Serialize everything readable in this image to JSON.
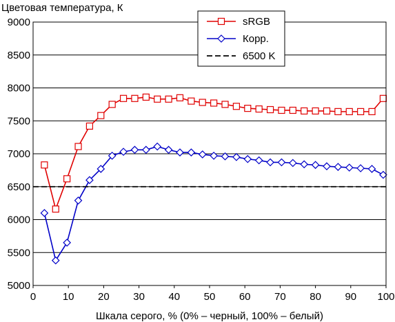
{
  "chart_data": {
    "type": "line",
    "title": "",
    "ylabel": "Цветовая температура, К",
    "xlabel": "Шкала серого, % (0% – черный, 100% – белый)",
    "xlim": [
      0,
      100
    ],
    "ylim": [
      5000,
      9000
    ],
    "xticks": [
      "0",
      "10",
      "20",
      "30",
      "40",
      "50",
      "60",
      "70",
      "80",
      "90",
      "100"
    ],
    "yticks": [
      "5000",
      "5500",
      "6000",
      "6500",
      "7000",
      "7500",
      "8000",
      "8500",
      "9000"
    ],
    "grid": "horizontal",
    "legend_position": "top-center",
    "series": [
      {
        "name": "sRGB",
        "color": "#e00000",
        "marker": "square",
        "x": [
          3.2,
          6.4,
          9.6,
          12.8,
          16,
          19.2,
          22.4,
          25.6,
          28.8,
          32,
          35.2,
          38.4,
          41.6,
          44.8,
          48,
          51.2,
          54.4,
          57.6,
          60.8,
          64,
          67.2,
          70.4,
          73.6,
          76.8,
          80,
          83.2,
          86.4,
          89.6,
          92.8,
          96,
          99.2
        ],
        "values": [
          6830,
          6160,
          6620,
          7110,
          7420,
          7580,
          7750,
          7840,
          7840,
          7860,
          7830,
          7830,
          7850,
          7800,
          7780,
          7770,
          7750,
          7720,
          7690,
          7680,
          7670,
          7660,
          7660,
          7650,
          7650,
          7650,
          7640,
          7640,
          7640,
          7640,
          7840
        ]
      },
      {
        "name": "Корр.",
        "color": "#0000c8",
        "marker": "diamond",
        "x": [
          3.2,
          6.4,
          9.6,
          12.8,
          16,
          19.2,
          22.4,
          25.6,
          28.8,
          32,
          35.2,
          38.4,
          41.6,
          44.8,
          48,
          51.2,
          54.4,
          57.6,
          60.8,
          64,
          67.2,
          70.4,
          73.6,
          76.8,
          80,
          83.2,
          86.4,
          89.6,
          92.8,
          96,
          99.2
        ],
        "values": [
          6100,
          5380,
          5650,
          6290,
          6600,
          6770,
          6970,
          7030,
          7060,
          7060,
          7110,
          7060,
          7020,
          7020,
          6990,
          6970,
          6960,
          6950,
          6920,
          6900,
          6870,
          6870,
          6860,
          6840,
          6830,
          6810,
          6800,
          6790,
          6780,
          6770,
          6680
        ]
      },
      {
        "name": "6500 K",
        "color": "#000000",
        "style": "dashed",
        "x": [
          0,
          100
        ],
        "values": [
          6500,
          6500
        ]
      }
    ]
  }
}
